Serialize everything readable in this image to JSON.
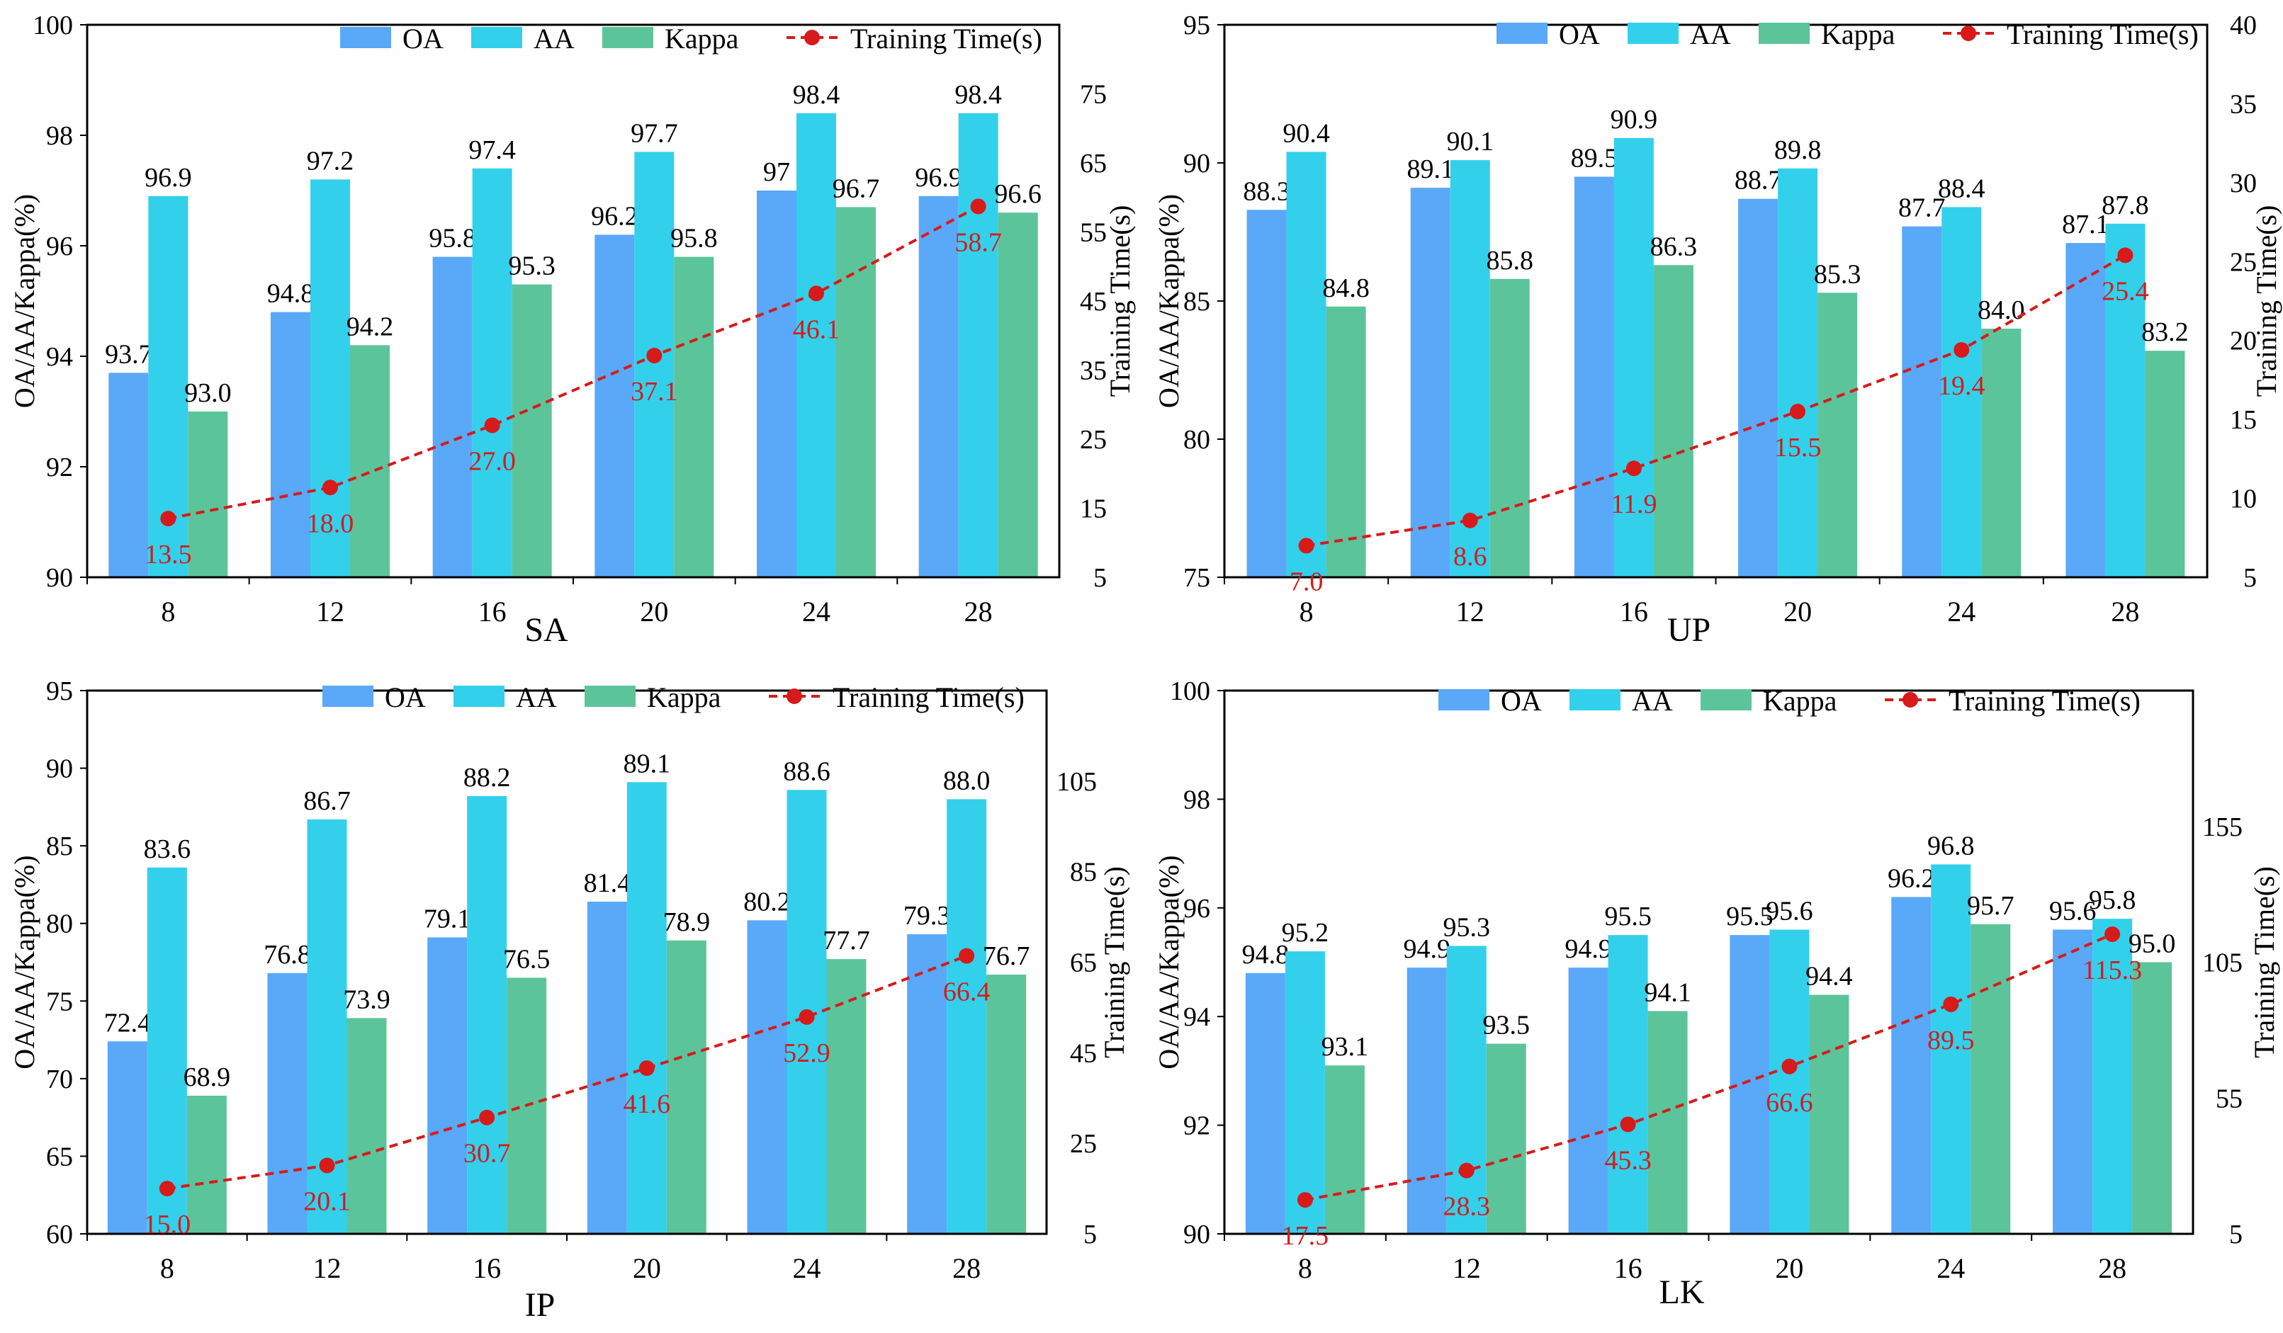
{
  "chart_data": [
    {
      "type": "bar",
      "title": "SA",
      "categories": [
        "8",
        "12",
        "16",
        "20",
        "24",
        "28"
      ],
      "ylabel": "OA/AA/Kappa(%)",
      "y2label": "Training Time(s)",
      "ylim": [
        90,
        100
      ],
      "yticks": [
        "90",
        "92",
        "94",
        "96",
        "98",
        "100"
      ],
      "y2lim": [
        5,
        85
      ],
      "y2ticks": [
        "5",
        "15",
        "25",
        "35",
        "45",
        "55",
        "65",
        "75"
      ],
      "series": [
        {
          "name": "OA",
          "values": [
            93.7,
            94.8,
            95.8,
            96.2,
            97.0,
            96.9
          ],
          "labels": [
            "93.7",
            "94.8",
            "95.8",
            "96.2",
            "97",
            "96.9"
          ]
        },
        {
          "name": "AA",
          "values": [
            96.9,
            97.2,
            97.4,
            97.7,
            98.4,
            98.4
          ],
          "labels": [
            "96.9",
            "97.2",
            "97.4",
            "97.7",
            "98.4",
            "98.4"
          ]
        },
        {
          "name": "Kappa",
          "values": [
            93.0,
            94.2,
            95.3,
            95.8,
            96.7,
            96.6
          ],
          "labels": [
            "93.0",
            "94.2",
            "95.3",
            "95.8",
            "96.7",
            "96.6"
          ]
        }
      ],
      "line": {
        "name": "Training Time(s)",
        "values": [
          13.5,
          18.0,
          27.0,
          37.1,
          46.1,
          58.7
        ],
        "labels": [
          "13.5",
          "18.0",
          "27.0",
          "37.1",
          "46.1",
          "58.7"
        ]
      }
    },
    {
      "type": "bar",
      "title": "UP",
      "categories": [
        "8",
        "12",
        "16",
        "20",
        "24",
        "28"
      ],
      "ylabel": "OA/AA/Kappa(%)",
      "y2label": "Training Time(s)",
      "ylim": [
        75,
        95
      ],
      "yticks": [
        "75",
        "80",
        "85",
        "90",
        "95"
      ],
      "y2lim": [
        5,
        40
      ],
      "y2ticks": [
        "5",
        "10",
        "15",
        "20",
        "25",
        "30",
        "35",
        "40"
      ],
      "series": [
        {
          "name": "OA",
          "values": [
            88.3,
            89.1,
            89.5,
            88.7,
            87.7,
            87.1
          ],
          "labels": [
            "88.3",
            "89.1",
            "89.5",
            "88.7",
            "87.7",
            "87.1"
          ]
        },
        {
          "name": "AA",
          "values": [
            90.4,
            90.1,
            90.9,
            89.8,
            88.4,
            87.8
          ],
          "labels": [
            "90.4",
            "90.1",
            "90.9",
            "89.8",
            "88.4",
            "87.8"
          ]
        },
        {
          "name": "Kappa",
          "values": [
            84.8,
            85.8,
            86.3,
            85.3,
            84.0,
            83.2
          ],
          "labels": [
            "84.8",
            "85.8",
            "86.3",
            "85.3",
            "84.0",
            "83.2"
          ]
        }
      ],
      "line": {
        "name": "Training Time(s)",
        "values": [
          7.0,
          8.6,
          11.9,
          15.5,
          19.4,
          25.4
        ],
        "labels": [
          "7.0",
          "8.6",
          "11.9",
          "15.5",
          "19.4",
          "25.4"
        ]
      }
    },
    {
      "type": "bar",
      "title": "IP",
      "categories": [
        "8",
        "12",
        "16",
        "20",
        "24",
        "28"
      ],
      "ylabel": "OA/AA/Kappa(%)",
      "y2label": "Training Time(s)",
      "ylim": [
        60,
        95
      ],
      "yticks": [
        "60",
        "65",
        "70",
        "75",
        "80",
        "85",
        "90",
        "95"
      ],
      "y2lim": [
        5,
        125
      ],
      "y2ticks": [
        "5",
        "25",
        "45",
        "65",
        "85",
        "105"
      ],
      "series": [
        {
          "name": "OA",
          "values": [
            72.4,
            76.8,
            79.1,
            81.4,
            80.2,
            79.3
          ],
          "labels": [
            "72.4",
            "76.8",
            "79.1",
            "81.4",
            "80.2",
            "79.3"
          ]
        },
        {
          "name": "AA",
          "values": [
            83.6,
            86.7,
            88.2,
            89.1,
            88.6,
            88.0
          ],
          "labels": [
            "83.6",
            "86.7",
            "88.2",
            "89.1",
            "88.6",
            "88.0"
          ]
        },
        {
          "name": "Kappa",
          "values": [
            68.9,
            73.9,
            76.5,
            78.9,
            77.7,
            76.7
          ],
          "labels": [
            "68.9",
            "73.9",
            "76.5",
            "78.9",
            "77.7",
            "76.7"
          ]
        }
      ],
      "line": {
        "name": "Training Time(s)",
        "values": [
          15.0,
          20.1,
          30.7,
          41.6,
          52.9,
          66.4
        ],
        "labels": [
          "15.0",
          "20.1",
          "30.7",
          "41.6",
          "52.9",
          "66.4"
        ]
      }
    },
    {
      "type": "bar",
      "title": "LK",
      "categories": [
        "8",
        "12",
        "16",
        "20",
        "24",
        "28"
      ],
      "ylabel": "OA/AA/Kappa(%)",
      "y2label": "Training Time(s)",
      "ylim": [
        90,
        100
      ],
      "yticks": [
        "90",
        "92",
        "94",
        "96",
        "98",
        "100"
      ],
      "y2lim": [
        5,
        205
      ],
      "y2ticks": [
        "5",
        "55",
        "105",
        "155"
      ],
      "series": [
        {
          "name": "OA",
          "values": [
            94.8,
            94.9,
            94.9,
            95.5,
            96.2,
            95.6
          ],
          "labels": [
            "94.8",
            "94.9",
            "94.9",
            "95.5",
            "96.2",
            "95.6"
          ]
        },
        {
          "name": "AA",
          "values": [
            95.2,
            95.3,
            95.5,
            95.6,
            96.8,
            95.8
          ],
          "labels": [
            "95.2",
            "95.3",
            "95.5",
            "95.6",
            "96.8",
            "95.8"
          ]
        },
        {
          "name": "Kappa",
          "values": [
            93.1,
            93.5,
            94.1,
            94.4,
            95.7,
            95.0
          ],
          "labels": [
            "93.1",
            "93.5",
            "94.1",
            "94.4",
            "95.7",
            "95.0"
          ]
        }
      ],
      "line": {
        "name": "Training Time(s)",
        "values": [
          17.5,
          28.3,
          45.3,
          66.6,
          89.5,
          115.3
        ],
        "labels": [
          "17.5",
          "28.3",
          "45.3",
          "66.6",
          "89.5",
          "115.3"
        ]
      }
    }
  ],
  "colors": {
    "OA": "#5aa8f8",
    "AA": "#33d0ec",
    "Kappa": "#5cc49a",
    "line": "#d71a1a",
    "axis": "#000000"
  }
}
